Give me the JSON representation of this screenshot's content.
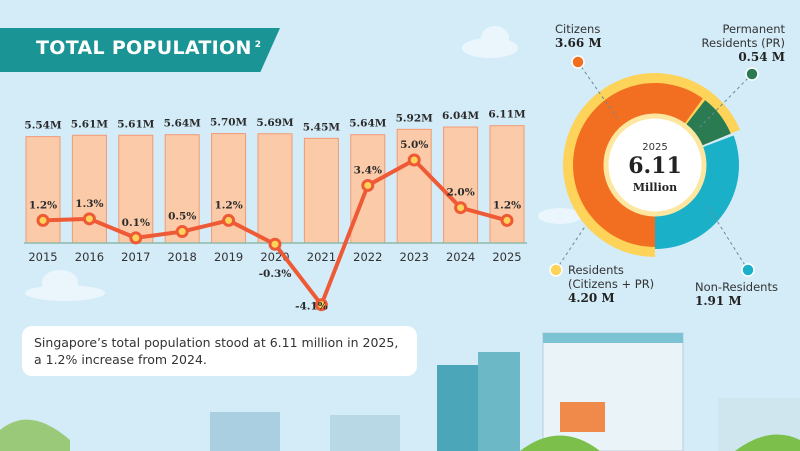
{
  "header": {
    "title": "TOTAL POPULATION",
    "footnote": "2"
  },
  "chart_data": [
    {
      "type": "bar+line",
      "categories": [
        "2015",
        "2016",
        "2017",
        "2018",
        "2019",
        "2020",
        "2021",
        "2022",
        "2023",
        "2024",
        "2025"
      ],
      "series": [
        {
          "name": "Total population",
          "type": "bar",
          "values": [
            5.54,
            5.61,
            5.61,
            5.64,
            5.7,
            5.69,
            5.45,
            5.64,
            5.92,
            6.04,
            6.11
          ],
          "labels": [
            "5.54M",
            "5.61M",
            "5.61M",
            "5.64M",
            "5.70M",
            "5.69M",
            "5.45M",
            "5.64M",
            "5.92M",
            "6.04M",
            "6.11M"
          ],
          "color": "#fbcaa8"
        },
        {
          "name": "Growth",
          "type": "line",
          "values": [
            1.2,
            1.3,
            0.1,
            0.5,
            1.2,
            -0.3,
            -4.1,
            3.4,
            5.0,
            2.0,
            1.2
          ],
          "labels": [
            "1.2%",
            "1.3%",
            "0.1%",
            "0.5%",
            "1.2%",
            "-0.3%",
            "-4.1%",
            "3.4%",
            "5.0%",
            "2.0%",
            "1.2%"
          ],
          "color": "#ee5a36"
        }
      ]
    },
    {
      "type": "pie",
      "year": "2025",
      "total": "6.11",
      "total_unit": "Million",
      "slices": [
        {
          "name": "Citizens",
          "value": 3.66,
          "label": "3.66 M",
          "color": "#f26f22"
        },
        {
          "name": "Permanent Residents (PR)",
          "value": 0.54,
          "label": "0.54 M",
          "color": "#2a7a52"
        },
        {
          "name": "Non-Residents",
          "value": 1.91,
          "label": "1.91 M",
          "color": "#1ab0c8"
        }
      ],
      "ring": {
        "name": "Residents (Citizens + PR)",
        "value": 4.2,
        "label": "4.20 M",
        "color": "#fdd35a"
      }
    }
  ],
  "donut_labels": {
    "citizens": "Citizens",
    "citizens_val": "3.66 M",
    "pr1": "Permanent",
    "pr2": "Residents (PR)",
    "pr_val": "0.54 M",
    "res1": "Residents",
    "res2": "(Citizens + PR)",
    "res_val": "4.20 M",
    "nonres": "Non-Residents",
    "nonres_val": "1.91 M"
  },
  "note": "Singapore’s total population stood at 6.11 million in 2025, a 1.2% increase from 2024."
}
